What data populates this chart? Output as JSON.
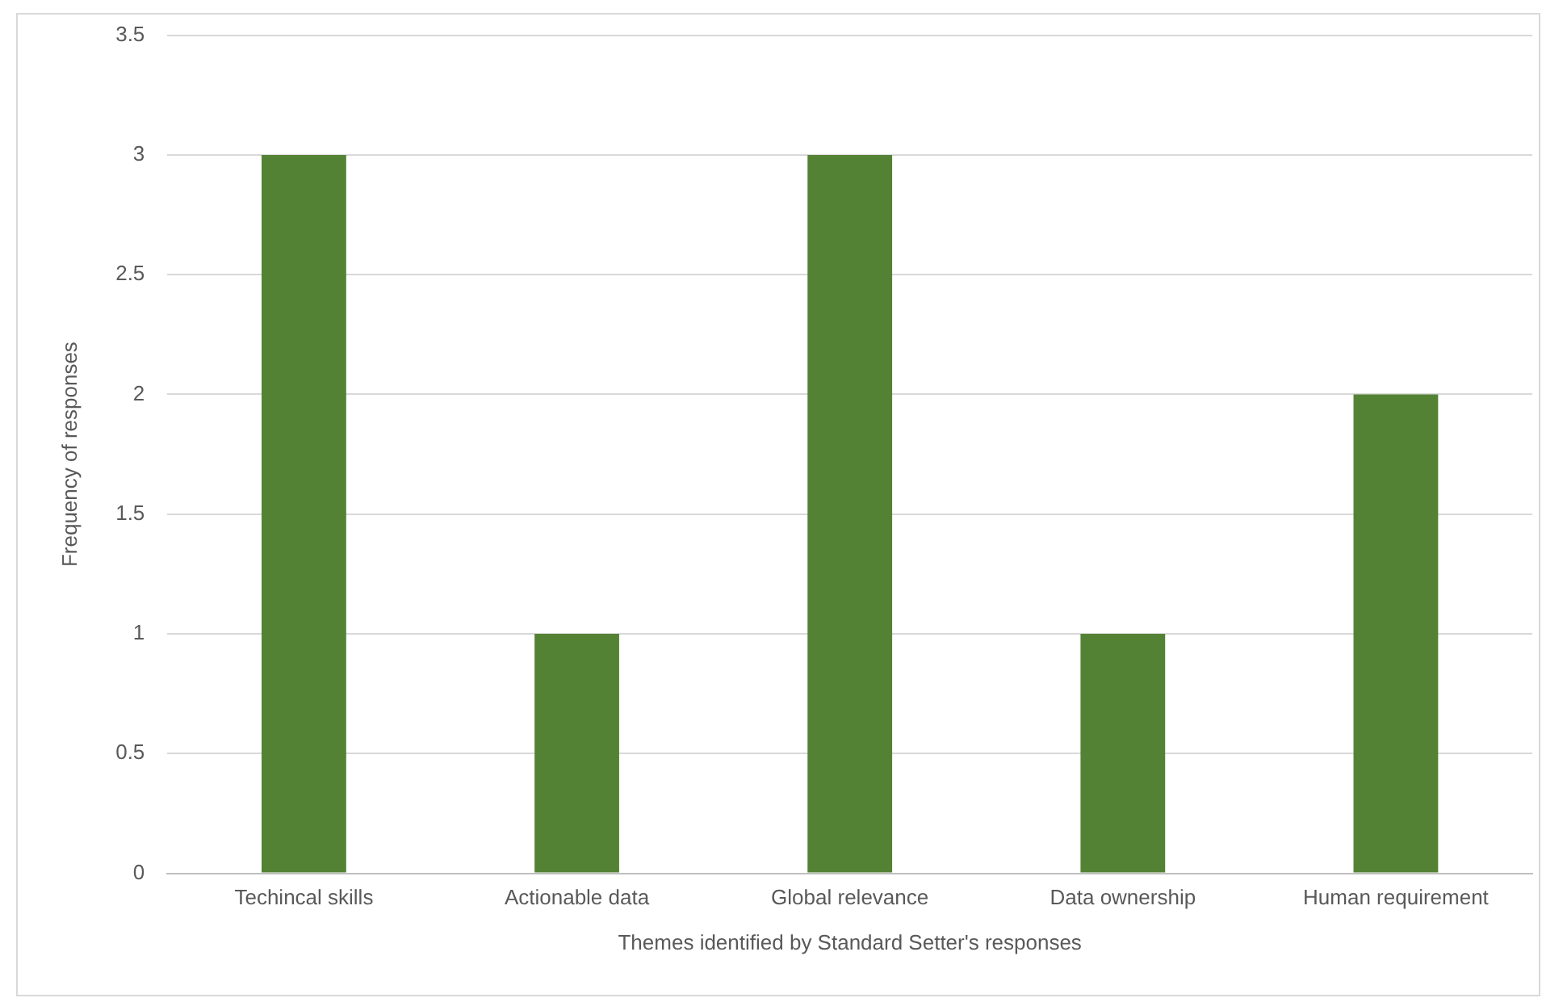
{
  "chart_data": {
    "type": "bar",
    "xlabel": "Themes identified by Standard Setter's responses",
    "ylabel": "Frequency of responses",
    "categories": [
      "Techincal skills",
      "Actionable data",
      "Global relevance",
      "Data ownership",
      "Human requirement"
    ],
    "values": [
      3,
      1,
      3,
      1,
      2
    ],
    "color": "#548235",
    "ylim": [
      0,
      3.5
    ],
    "yticks": [
      0,
      0.5,
      1,
      1.5,
      2,
      2.5,
      3,
      3.5
    ],
    "grid": "y",
    "legend": false
  }
}
